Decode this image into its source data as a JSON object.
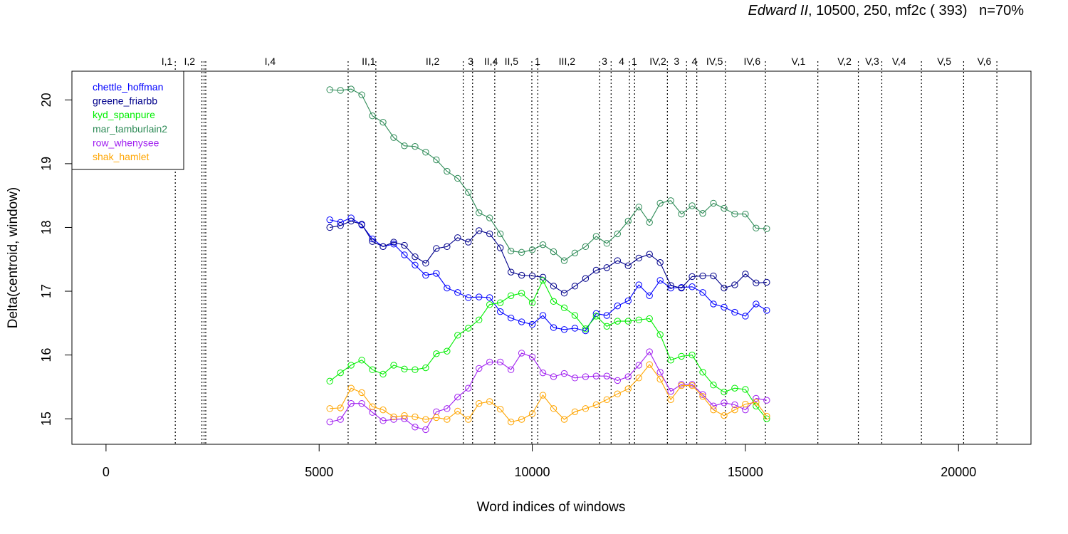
{
  "chart_data": {
    "type": "line",
    "title_italic": "Edward II",
    "title_rest": ", 10500, 250, mf2c ( 393)   n=70%",
    "xlabel": "Word indices of windows",
    "ylabel": "Delta(centroid, window)",
    "xlim": [
      -800,
      21700
    ],
    "ylim": [
      14.6,
      20.45
    ],
    "x_ticks": [
      0,
      5000,
      10000,
      15000,
      20000
    ],
    "y_ticks": [
      15,
      16,
      17,
      18,
      19,
      20
    ],
    "grid": false,
    "legend_position": "top-left",
    "scene_markers": [
      {
        "label": "I,1",
        "x": 1625,
        "label_x": 1300
      },
      {
        "label": "I,2",
        "x": 2250,
        "label_x": 1830
      },
      {
        "label": "",
        "x": 2300,
        "label_x": 2300
      },
      {
        "label": "",
        "x": 2340,
        "label_x": 2340
      },
      {
        "label": "I,4",
        "x": 5680,
        "label_x": 3720
      },
      {
        "label": "II,1",
        "x": 6330,
        "label_x": 6000
      },
      {
        "label": "II,2",
        "x": 8380,
        "label_x": 7500
      },
      {
        "label": "3",
        "x": 8600,
        "label_x": 8490
      },
      {
        "label": "II,4",
        "x": 9120,
        "label_x": 8870
      },
      {
        "label": "II,5",
        "x": 9990,
        "label_x": 9350
      },
      {
        "label": "1",
        "x": 10130,
        "label_x": 10060
      },
      {
        "label": "III,2",
        "x": 11580,
        "label_x": 10620
      },
      {
        "label": "3",
        "x": 11850,
        "label_x": 11630
      },
      {
        "label": "4",
        "x": 12280,
        "label_x": 12030
      },
      {
        "label": "1",
        "x": 12400,
        "label_x": 12330
      },
      {
        "label": "IV,2",
        "x": 13170,
        "label_x": 12750
      },
      {
        "label": "3",
        "x": 13620,
        "label_x": 13320
      },
      {
        "label": "4",
        "x": 13860,
        "label_x": 13740
      },
      {
        "label": "IV,5",
        "x": 14530,
        "label_x": 14080
      },
      {
        "label": "IV,6",
        "x": 15470,
        "label_x": 14960
      },
      {
        "label": "V,1",
        "x": 16700,
        "label_x": 16080
      },
      {
        "label": "V,2",
        "x": 17650,
        "label_x": 17160
      },
      {
        "label": "V,3",
        "x": 18200,
        "label_x": 17810
      },
      {
        "label": "V,4",
        "x": 19130,
        "label_x": 18440
      },
      {
        "label": "V,5",
        "x": 20120,
        "label_x": 19500
      },
      {
        "label": "V,6",
        "x": 20900,
        "label_x": 20440
      }
    ],
    "x": [
      5250,
      5500,
      5750,
      6000,
      6250,
      6500,
      6750,
      7000,
      7250,
      7500,
      7750,
      8000,
      8250,
      8500,
      8750,
      9000,
      9250,
      9500,
      9750,
      10000,
      10250,
      10500,
      10750,
      11000,
      11250,
      11500,
      11750,
      12000,
      12250,
      12500,
      12750,
      13000,
      13250,
      13500,
      13750,
      14000,
      14250,
      14500,
      14750,
      15000,
      15250,
      15500
    ],
    "series": [
      {
        "name": "chettle_hoffman",
        "color": "#0000ff",
        "values": [
          18.12,
          18.08,
          18.15,
          18.04,
          17.82,
          17.7,
          17.74,
          17.57,
          17.41,
          17.25,
          17.28,
          17.05,
          16.98,
          16.9,
          16.91,
          16.9,
          16.68,
          16.58,
          16.52,
          16.48,
          16.62,
          16.43,
          16.4,
          16.42,
          16.38,
          16.65,
          16.62,
          16.77,
          16.85,
          17.1,
          16.93,
          17.17,
          17.05,
          17.06,
          17.07,
          16.98,
          16.8,
          16.75,
          16.67,
          16.61,
          16.8,
          16.7
        ]
      },
      {
        "name": "greene_friarbb",
        "color": "#00008b",
        "values": [
          18.0,
          18.03,
          18.1,
          18.05,
          17.78,
          17.7,
          17.77,
          17.72,
          17.54,
          17.44,
          17.67,
          17.7,
          17.84,
          17.77,
          17.95,
          17.9,
          17.68,
          17.3,
          17.25,
          17.24,
          17.22,
          17.08,
          16.97,
          17.08,
          17.2,
          17.33,
          17.37,
          17.48,
          17.4,
          17.52,
          17.58,
          17.45,
          17.09,
          17.05,
          17.23,
          17.24,
          17.24,
          17.05,
          17.1,
          17.27,
          17.13,
          17.14
        ]
      },
      {
        "name": "kyd_spanpure",
        "color": "#00ee00",
        "values": [
          15.59,
          15.72,
          15.84,
          15.92,
          15.77,
          15.7,
          15.84,
          15.78,
          15.77,
          15.8,
          16.02,
          16.06,
          16.31,
          16.42,
          16.55,
          16.79,
          16.82,
          16.93,
          16.97,
          16.82,
          17.17,
          16.84,
          16.74,
          16.62,
          16.41,
          16.61,
          16.45,
          16.53,
          16.53,
          16.55,
          16.57,
          16.32,
          15.92,
          15.98,
          16.0,
          15.73,
          15.53,
          15.42,
          15.48,
          15.46,
          15.2,
          15.0
        ]
      },
      {
        "name": "mar_tamburlain2",
        "color": "#2e8b57",
        "values": [
          20.16,
          20.15,
          20.17,
          20.08,
          19.75,
          19.65,
          19.41,
          19.28,
          19.27,
          19.18,
          19.06,
          18.88,
          18.77,
          18.55,
          18.23,
          18.15,
          17.9,
          17.63,
          17.61,
          17.65,
          17.73,
          17.62,
          17.48,
          17.6,
          17.7,
          17.86,
          17.75,
          17.9,
          18.1,
          18.32,
          18.08,
          18.38,
          18.42,
          18.21,
          18.34,
          18.22,
          18.38,
          18.3,
          18.21,
          18.21,
          17.99,
          17.98
        ]
      },
      {
        "name": "row_whenysee",
        "color": "#a020f0",
        "values": [
          14.95,
          14.99,
          15.24,
          15.24,
          15.1,
          14.97,
          14.99,
          15.0,
          14.87,
          14.83,
          15.11,
          15.16,
          15.34,
          15.48,
          15.79,
          15.89,
          15.89,
          15.77,
          16.03,
          15.97,
          15.72,
          15.66,
          15.71,
          15.64,
          15.66,
          15.67,
          15.67,
          15.6,
          15.66,
          15.84,
          16.05,
          15.73,
          15.43,
          15.54,
          15.54,
          15.38,
          15.2,
          15.25,
          15.22,
          15.14,
          15.32,
          15.29
        ]
      },
      {
        "name": "shak_hamlet",
        "color": "#ffa500",
        "values": [
          15.16,
          15.17,
          15.48,
          15.41,
          15.19,
          15.14,
          15.03,
          15.05,
          15.03,
          14.99,
          15.02,
          14.99,
          15.12,
          14.99,
          15.24,
          15.27,
          15.15,
          14.95,
          14.99,
          15.08,
          15.37,
          15.16,
          14.99,
          15.11,
          15.16,
          15.22,
          15.3,
          15.39,
          15.47,
          15.64,
          15.85,
          15.62,
          15.3,
          15.52,
          15.52,
          15.35,
          15.14,
          15.05,
          15.14,
          15.23,
          15.26,
          15.04
        ]
      }
    ]
  }
}
